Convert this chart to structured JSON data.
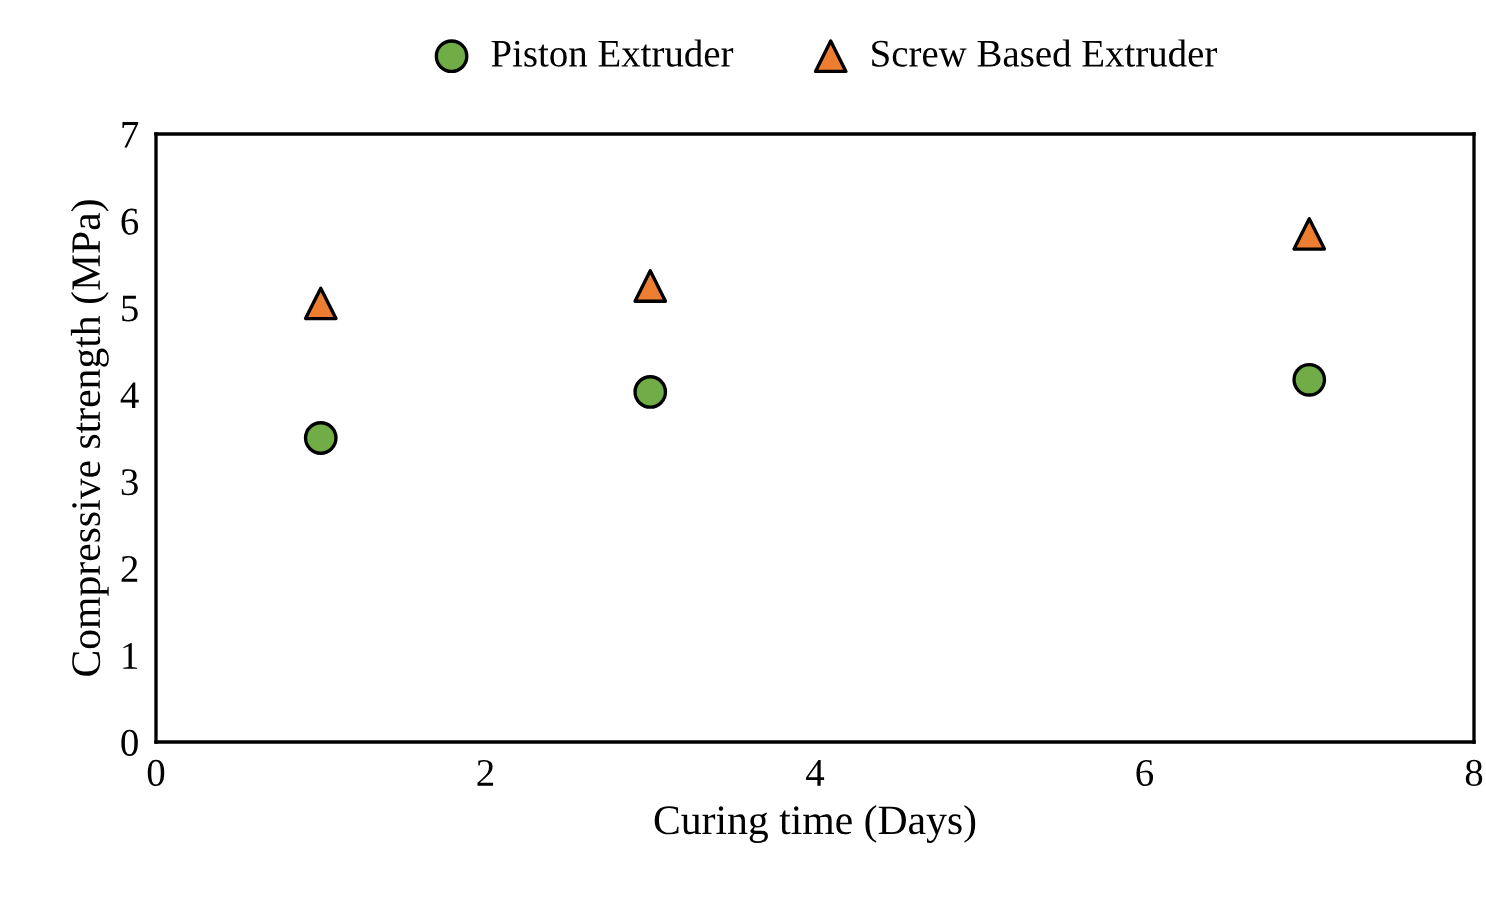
{
  "chart_data": {
    "type": "scatter",
    "xlabel": "Curing time (Days)",
    "ylabel": "Compressive strength (MPa)",
    "xlim": [
      0,
      8
    ],
    "xticks": [
      0,
      2,
      4,
      6,
      8
    ],
    "ylim": [
      0,
      7
    ],
    "yticks": [
      0,
      1,
      2,
      3,
      4,
      5,
      6,
      7
    ],
    "grid": false,
    "legend": "top",
    "series": [
      {
        "name": "Piston Extruder",
        "color": "#70ad47",
        "marker": "circle",
        "x": [
          1,
          3,
          7
        ],
        "values": [
          3.5,
          4.03,
          4.17
        ]
      },
      {
        "name": "Screw Based Extruder",
        "color": "#ed7d31",
        "marker": "triangle",
        "x": [
          1,
          3,
          7
        ],
        "values": [
          5.05,
          5.25,
          5.85
        ]
      }
    ]
  }
}
